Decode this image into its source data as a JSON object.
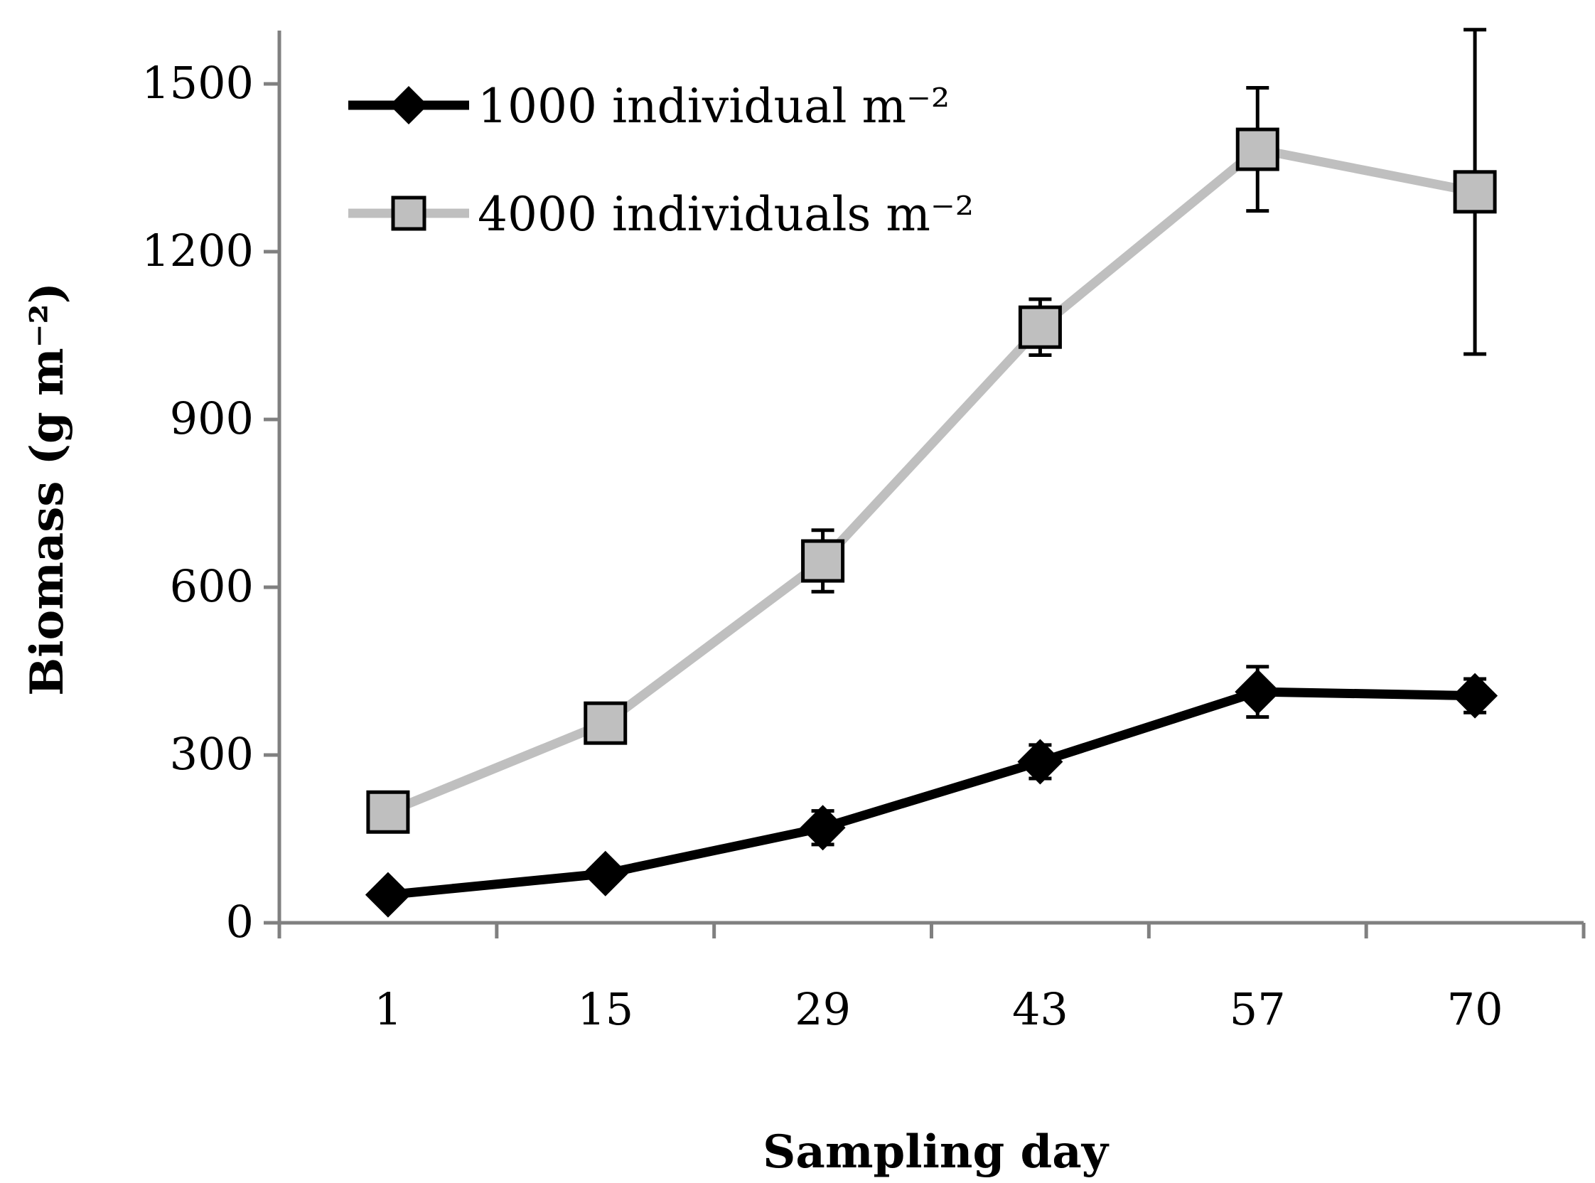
{
  "chart_data": {
    "type": "line",
    "title": "",
    "xlabel": "Sampling day",
    "ylabel": "Biomass (g m⁻²)",
    "categories": [
      "1",
      "15",
      "29",
      "43",
      "57",
      "70"
    ],
    "ylim": [
      0,
      1500
    ],
    "yticks": [
      "0",
      "300",
      "600",
      "900",
      "1200",
      "1500"
    ],
    "grid": false,
    "legend_position": "top-left",
    "series": [
      {
        "name": "1000 individual m⁻²",
        "values": [
          50,
          88,
          170,
          288,
          413,
          406
        ],
        "error": [
          10,
          15,
          30,
          30,
          45,
          30
        ],
        "marker": "diamond",
        "color": "#000000"
      },
      {
        "name": "4000 individuals m⁻²",
        "values": [
          198,
          357,
          647,
          1065,
          1383,
          1307
        ],
        "error": [
          15,
          20,
          55,
          50,
          110,
          290
        ],
        "marker": "square",
        "color": "#bfbfbf"
      }
    ]
  }
}
